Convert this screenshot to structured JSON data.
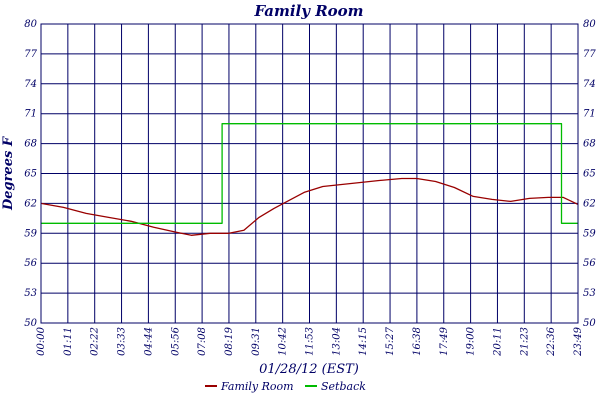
{
  "chart_data": {
    "type": "line",
    "title": "Family Room",
    "xlabel": "01/28/12 (EST)",
    "ylabel": "Degrees F",
    "ylim": [
      50,
      80
    ],
    "yticks": [
      50,
      53,
      56,
      59,
      62,
      65,
      68,
      71,
      74,
      77,
      80
    ],
    "xlim": [
      0,
      1429
    ],
    "xticks": [
      "00:00",
      "01:11",
      "02:22",
      "03:33",
      "04:44",
      "05:56",
      "07:08",
      "08:19",
      "09:31",
      "10:42",
      "11:53",
      "13:04",
      "14:15",
      "15:27",
      "16:38",
      "17:49",
      "19:00",
      "20:11",
      "21:23",
      "22:36",
      "23:49"
    ],
    "grid": true,
    "legend_position": "bottom",
    "colors": {
      "frame": "#000066",
      "grid": "#000066",
      "Family Room": "#990000",
      "Setback": "#00bb00"
    },
    "series": [
      {
        "name": "Family Room",
        "x": [
          0,
          60,
          120,
          180,
          240,
          300,
          360,
          400,
          450,
          500,
          540,
          580,
          620,
          660,
          700,
          750,
          800,
          850,
          900,
          930,
          960,
          1000,
          1050,
          1100,
          1150,
          1200,
          1250,
          1300,
          1350,
          1390,
          1429
        ],
        "y": [
          62.0,
          61.6,
          61.0,
          60.6,
          60.2,
          59.6,
          59.1,
          58.8,
          59.0,
          59.0,
          59.3,
          60.6,
          61.5,
          62.3,
          63.1,
          63.7,
          63.9,
          64.1,
          64.3,
          64.4,
          64.5,
          64.5,
          64.2,
          63.6,
          62.7,
          62.4,
          62.2,
          62.5,
          62.6,
          62.6,
          61.9
        ]
      },
      {
        "name": "Setback",
        "x": [
          0,
          482,
          482,
          1385,
          1385,
          1429
        ],
        "y": [
          60.0,
          60.0,
          70.0,
          70.0,
          60.0,
          60.0
        ]
      }
    ]
  }
}
